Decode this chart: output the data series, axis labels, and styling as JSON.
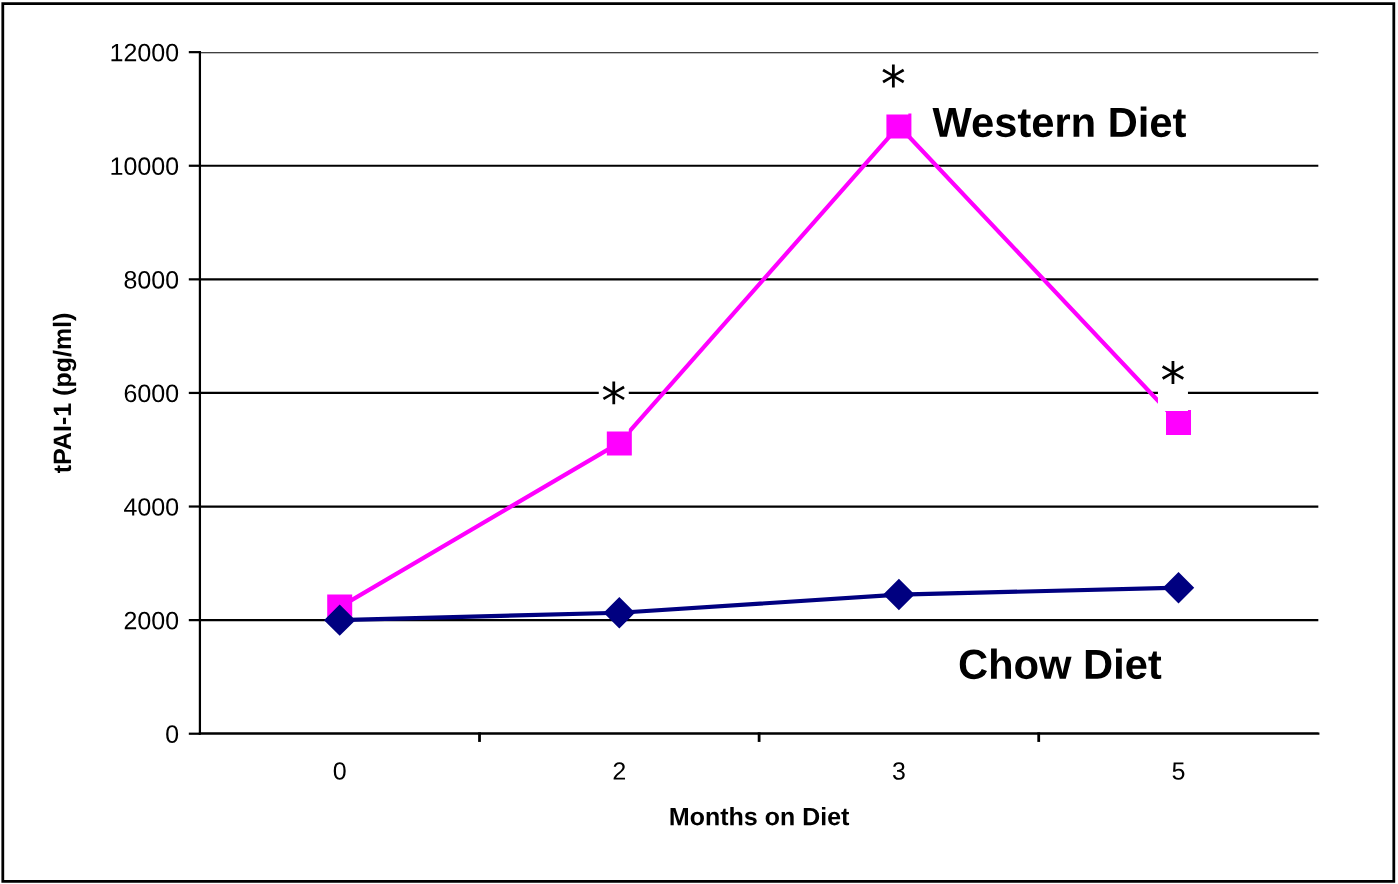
{
  "chart_data": {
    "type": "line",
    "xlabel": "Months on Diet",
    "ylabel": "tPAI-1 (pg/ml)",
    "categories": [
      "0",
      "2",
      "3",
      "5"
    ],
    "series": [
      {
        "name": "Western Diet",
        "color": "#ff00ff",
        "marker": "square",
        "values": [
          2230,
          5120,
          10700,
          5480
        ]
      },
      {
        "name": "Chow Diet",
        "color": "#000080",
        "marker": "diamond",
        "values": [
          2000,
          2130,
          2450,
          2570
        ]
      }
    ],
    "ylim": [
      0,
      12000
    ],
    "yticks": [
      0,
      2000,
      4000,
      6000,
      8000,
      10000,
      12000
    ],
    "grid": "y",
    "legend": false,
    "annotations": [
      {
        "text": "*",
        "x": "2",
        "y": 5120
      },
      {
        "text": "*",
        "x": "3",
        "y": 10700
      },
      {
        "text": "*",
        "x": "5",
        "y": 5480
      }
    ]
  }
}
